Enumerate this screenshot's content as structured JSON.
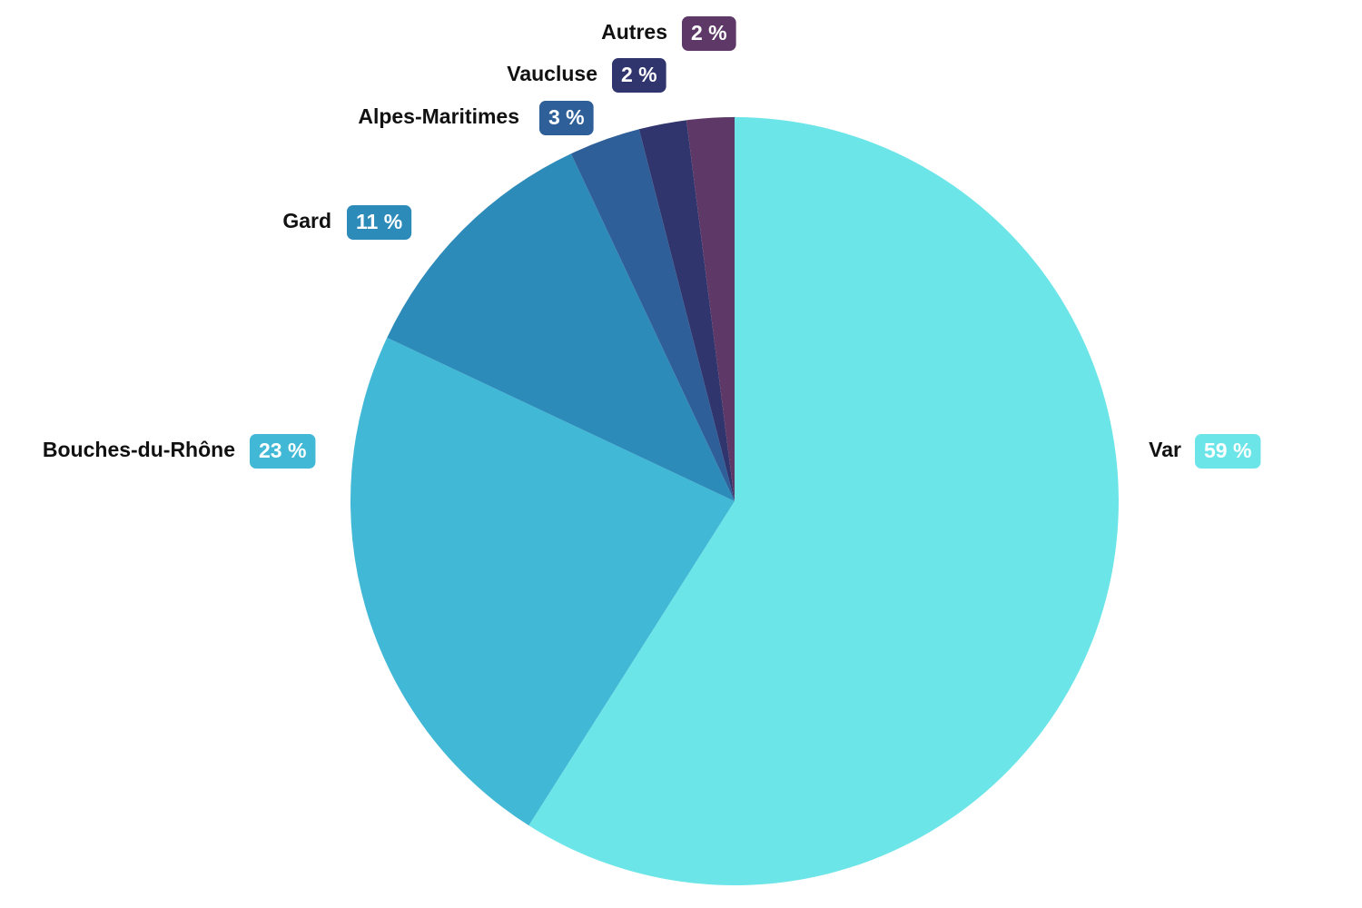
{
  "chart_data": {
    "type": "pie",
    "categories": [
      "Var",
      "Bouches-du-Rhône",
      "Gard",
      "Alpes-Maritimes",
      "Vaucluse",
      "Autres"
    ],
    "values": [
      59,
      23,
      11,
      3,
      2,
      2
    ],
    "value_labels": [
      "59 %",
      "23 %",
      "11 %",
      "3 %",
      "2 %",
      "2 %"
    ],
    "colors": [
      "#6ce5e8",
      "#41b8d5",
      "#2d8bba",
      "#2f5f98",
      "#31356e",
      "#5e3967"
    ]
  }
}
